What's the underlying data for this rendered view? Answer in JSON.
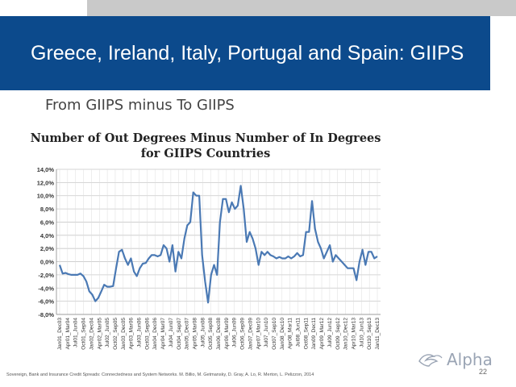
{
  "header": {
    "title": "Greece, Ireland, Italy, Portugal and Spain: GIIPS",
    "subtitle": "From GIIPS minus To GIIPS"
  },
  "footer": {
    "citation": "Sovereign, Bank and Insurance Credit Spreads: Connectedness and System Networks. M. Billio, M. Getmansky, D. Gray, A. Lo, R. Merton, L. Pelizzon, 2014",
    "page_number": "22"
  },
  "logo": {
    "text": "Alpha",
    "icon": "dove-logo-icon"
  },
  "colors": {
    "banner": "#0c4a8c",
    "series": "#4a79b4"
  },
  "chart_data": {
    "type": "line",
    "title": "Number of Out Degrees Minus Number of In Degrees for GIIPS Countries",
    "xlabel": "",
    "ylabel": "",
    "ylim": [
      -8,
      14
    ],
    "grid": true,
    "yticks": [
      "14,0%",
      "12,0%",
      "10,0%",
      "8,0%",
      "6,0%",
      "4,0%",
      "2,0%",
      "0,0%",
      "-2,0%",
      "-4,0%",
      "-6,0%",
      "-8,0%"
    ],
    "xticks": [
      "Jan01_Dec03",
      "Apr01_Mar04",
      "Jul01_Jun04",
      "Oct01_Sep04",
      "Jan02_Dec04",
      "Apr02_Mar05",
      "Jul02_Jun05",
      "Oct02_Sep05",
      "Jan03_Dec05",
      "Apr03_Mar06",
      "Jul03_Jun06",
      "Oct03_Sep06",
      "Jan04_Dec06",
      "Apr04_Mar07",
      "Jul04_Jun07",
      "Oct04_Sep07",
      "Jan05_Dec07",
      "Apr05_Mar08",
      "Jul05_Jun08",
      "Oct05_Sep08",
      "Jan06_Dec08",
      "Apr06_Mar09",
      "Jul06_Jun09",
      "Oct06_Sep09",
      "Jan07_Dec09",
      "Apr07_Mar10",
      "Jul07_Jun10",
      "Oct07_Sep10",
      "Jan08_Dec10",
      "Apr08_Mar11",
      "Jul08_Jun11",
      "Oct08_Sep11",
      "Jan09_Dec11",
      "Apr09_Mar12",
      "Jul09_Jun12",
      "Oct09_Sep12",
      "Jan10_Dec12",
      "Apr10_Mar13",
      "Jul10_Jun13",
      "Oct10_Sep13",
      "Jan11_Dec13"
    ],
    "series": [
      {
        "name": "",
        "values": [
          -0.5,
          -1.8,
          -1.7,
          -1.9,
          -2.0,
          -2.0,
          -2.0,
          -1.8,
          -2.2,
          -3.0,
          -4.5,
          -5.0,
          -6.0,
          -5.5,
          -4.5,
          -3.5,
          -3.8,
          -3.8,
          -3.7,
          -1.0,
          1.5,
          1.8,
          0.5,
          -0.5,
          0.5,
          -1.5,
          -2.2,
          -1.0,
          -0.3,
          -0.2,
          0.5,
          1.0,
          1.0,
          0.8,
          1.0,
          2.5,
          2.0,
          0.0,
          2.5,
          -1.5,
          1.5,
          0.5,
          3.5,
          5.5,
          6.0,
          10.5,
          10.0,
          10.0,
          1.0,
          -3.0,
          -6.2,
          -2.0,
          -0.5,
          -2.0,
          6.0,
          9.5,
          9.5,
          7.5,
          9.0,
          8.0,
          8.5,
          11.5,
          8.0,
          3.0,
          4.5,
          3.5,
          2.0,
          -0.5,
          1.5,
          1.0,
          1.5,
          1.0,
          0.8,
          0.5,
          0.7,
          0.5,
          0.5,
          0.8,
          0.5,
          0.8,
          1.3,
          0.8,
          1.0,
          4.5,
          4.5,
          9.2,
          5.0,
          3.0,
          2.0,
          0.5,
          1.5,
          2.5,
          0.0,
          1.0,
          0.5,
          0.0,
          -0.5,
          -1.0,
          -1.0,
          -1.0,
          -2.8,
          0.0,
          1.8,
          -0.5,
          1.5,
          1.5,
          0.5,
          0.8
        ]
      }
    ]
  }
}
